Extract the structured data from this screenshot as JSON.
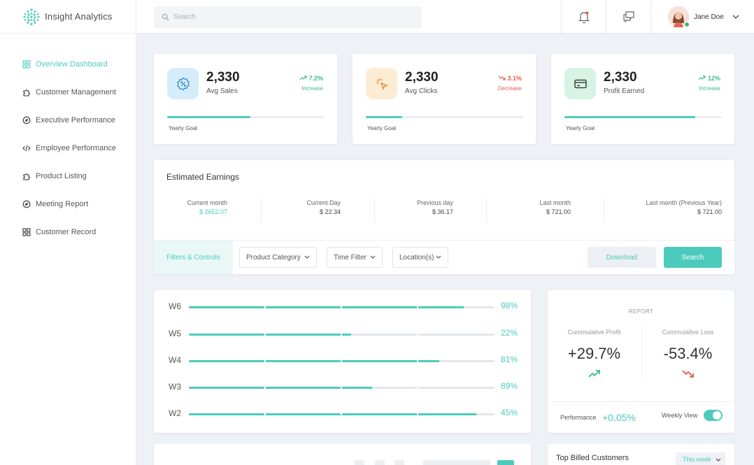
{
  "brand": {
    "name": "Insight Analytics",
    "logo_icon": "dot-grid-logo",
    "accent": "#4ccbbc"
  },
  "sidebar": {
    "items": [
      {
        "label": "Overview Dashboard",
        "icon": "grid-icon",
        "active": true
      },
      {
        "label": "Customer Management",
        "icon": "puzzle-icon",
        "active": false
      },
      {
        "label": "Executive Performance",
        "icon": "gauge-icon",
        "active": false
      },
      {
        "label": "Employee Performance",
        "icon": "code-icon",
        "active": false
      },
      {
        "label": "Product Listing",
        "icon": "puzzle-icon",
        "active": false
      },
      {
        "label": "Meeting Report",
        "icon": "gauge-icon",
        "active": false
      },
      {
        "label": "Customer Record",
        "icon": "grid-icon",
        "active": false
      }
    ]
  },
  "header": {
    "search_placeholder": "Search",
    "user_name": "Jane Doe"
  },
  "stats": [
    {
      "value": "2,330",
      "label": "Avg Sales",
      "change": "7.2%",
      "change_label": "Increase",
      "direction": "up",
      "goal_label": "Yearly Goal",
      "progress": 0.53,
      "icon": "badge-percent-icon",
      "icon_bg": "#d6ecfb",
      "icon_color": "#2e86c8"
    },
    {
      "value": "2,330",
      "label": "Avg Clicks",
      "change": "3.1%",
      "change_label": "Decrease",
      "direction": "down",
      "goal_label": "Yearly Goal",
      "progress": 0.23,
      "icon": "cursor-click-icon",
      "icon_bg": "#fdecd4",
      "icon_color": "#e8862a"
    },
    {
      "value": "2,330",
      "label": "Profit Earned",
      "change": "12%",
      "change_label": "Increase",
      "direction": "up",
      "goal_label": "Yearly Goal",
      "progress": 0.83,
      "icon": "credit-card-icon",
      "icon_bg": "#d6f3e4",
      "icon_color": "#2aa66a"
    }
  ],
  "earnings": {
    "title": "Estimated Earnings",
    "columns": [
      {
        "label": "Current month",
        "value": "$ 2652.07"
      },
      {
        "label": "Current Day",
        "value": "$ 22.34"
      },
      {
        "label": "Previous day",
        "value": "$ 36.17"
      },
      {
        "label": "Last month",
        "value": "$ 721.00"
      },
      {
        "label": "Last month (Previous Year)",
        "value": "$ 721.00"
      }
    ]
  },
  "filters": {
    "label": "Filters & Controls",
    "product_category": "Product Category",
    "time_filter": "Time Filter",
    "locations": "Location(s)",
    "download": "Download",
    "search": "Search"
  },
  "weekly": [
    {
      "label": "W6",
      "fill": 0.9,
      "pct": "98%"
    },
    {
      "label": "W5",
      "fill": 0.53,
      "pct": "22%"
    },
    {
      "label": "W4",
      "fill": 0.82,
      "pct": "81%"
    },
    {
      "label": "W3",
      "fill": 0.6,
      "pct": "89%"
    },
    {
      "label": "W2",
      "fill": 0.94,
      "pct": "45%"
    }
  ],
  "report": {
    "title": "REPORT",
    "profit_label": "Cummulative Profit",
    "profit_value": "+29.7%",
    "loss_label": "Cummulative Loss",
    "loss_value": "-53.4%",
    "performance_label": "Performance",
    "performance_value": "+0.05%",
    "weekly_view_label": "Weekly View",
    "weekly_view_on": true
  },
  "top_billed": {
    "title": "Top Billed Customers",
    "period": "This week"
  },
  "colors": {
    "up": "#3dbb8a",
    "down": "#e85a4f"
  }
}
